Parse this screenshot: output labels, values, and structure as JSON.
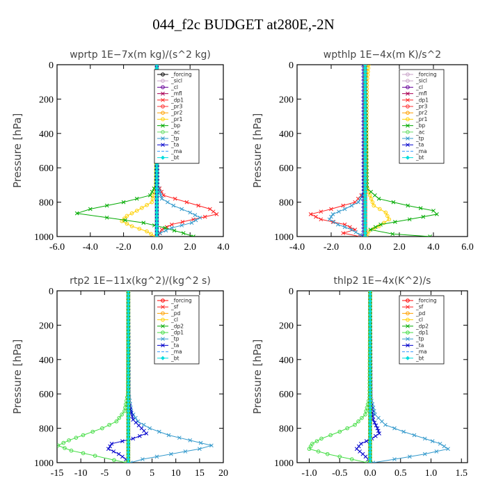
{
  "figure_title": "044_f2c  BUDGET at280E,-2N",
  "chart_data": [
    {
      "type": "line",
      "title": "wprtp   1E−7x(m kg)/(s^2 kg)",
      "xlabel": "",
      "ylabel": "Pressure [hPa]",
      "xlim": [
        -6,
        4
      ],
      "ylim": [
        1000,
        0
      ],
      "xticks": [
        -6,
        -4,
        -2,
        0,
        2,
        4
      ],
      "xtick_labels": [
        "-6.0",
        "-4.0",
        "-2.0",
        "0.0",
        "2.0",
        "4.0"
      ],
      "yticks": [
        0,
        200,
        400,
        600,
        800,
        1000
      ],
      "ytick_labels": [
        "0",
        "200",
        "400",
        "600",
        "800",
        "1000"
      ],
      "legend": "top-center",
      "series": [
        {
          "name": "_forcing",
          "color": "#000000",
          "marker": "o",
          "p": [
            0,
            1000
          ],
          "x": [
            0,
            0
          ]
        },
        {
          "name": "_sicl",
          "color": "#c8a2c8",
          "marker": "o",
          "p": [
            0,
            1000
          ],
          "x": [
            0,
            0
          ]
        },
        {
          "name": "_cl",
          "color": "#660099",
          "marker": "o",
          "p": [
            0,
            1000
          ],
          "x": [
            0,
            0
          ]
        },
        {
          "name": "_mfl",
          "color": "#aa0055",
          "marker": "x",
          "p": [
            0,
            1000
          ],
          "x": [
            0,
            0
          ]
        },
        {
          "name": "_dp1",
          "color": "#ff2020",
          "marker": "x",
          "p": [
            0,
            700,
            760,
            800,
            840,
            870,
            900,
            930,
            960,
            1000
          ],
          "x": [
            0,
            0.05,
            0.4,
            1.8,
            3.2,
            3.6,
            2.2,
            0.9,
            0.3,
            0.05
          ]
        },
        {
          "name": "_pr3",
          "color": "#ff3030",
          "marker": "o",
          "p": [
            0,
            1000
          ],
          "x": [
            0,
            0
          ]
        },
        {
          "name": "_pr2",
          "color": "#ffa000",
          "marker": "o",
          "p": [
            0,
            1000
          ],
          "x": [
            0,
            0
          ]
        },
        {
          "name": "_pr1",
          "color": "#ffd000",
          "marker": "o",
          "p": [
            0,
            700,
            800,
            850,
            880,
            910,
            940,
            970,
            1000
          ],
          "x": [
            0,
            -0.05,
            -0.3,
            -1.2,
            -1.8,
            -2.1,
            -1.5,
            -0.6,
            -0.1
          ]
        },
        {
          "name": "_bp",
          "color": "#00aa00",
          "marker": "x",
          "p": [
            0,
            700,
            760,
            800,
            840,
            865,
            890,
            920,
            950,
            980,
            1000
          ],
          "x": [
            0,
            -0.05,
            -0.4,
            -2.0,
            -4.0,
            -4.8,
            -3.0,
            -0.8,
            0.5,
            1.6,
            2.2
          ]
        },
        {
          "name": "_ac",
          "color": "#66dd66",
          "marker": "o",
          "p": [
            0,
            1000
          ],
          "x": [
            0,
            0
          ]
        },
        {
          "name": "_tp",
          "color": "#3399cc",
          "marker": "x",
          "p": [
            0,
            700,
            780,
            820,
            860,
            890,
            920,
            950,
            980,
            1000
          ],
          "x": [
            0,
            0.05,
            0.3,
            1.0,
            2.0,
            2.6,
            2.1,
            0.9,
            0.2,
            0
          ]
        },
        {
          "name": "_ta",
          "color": "#0000cc",
          "marker": "x",
          "p": [
            0,
            1000
          ],
          "x": [
            0,
            0
          ]
        },
        {
          "name": "_ma",
          "color": "#3399ff",
          "marker": "-",
          "p": [
            0,
            1000
          ],
          "x": [
            0,
            0
          ]
        },
        {
          "name": "_bt",
          "color": "#00dddd",
          "marker": "d",
          "p": [
            0,
            1000
          ],
          "x": [
            0,
            0
          ]
        }
      ]
    },
    {
      "type": "line",
      "title": "wpthlp   1E−4x(m K)/s^2",
      "xlabel": "",
      "ylabel": "Pressure [hPa]",
      "xlim": [
        -4,
        6
      ],
      "ylim": [
        1000,
        0
      ],
      "xticks": [
        -4,
        -2,
        0,
        2,
        4,
        6
      ],
      "xtick_labels": [
        "-4.0",
        "-2.0",
        "0.0",
        "2.0",
        "4.0",
        "6.0"
      ],
      "yticks": [
        0,
        200,
        400,
        600,
        800,
        1000
      ],
      "ytick_labels": [
        "0",
        "200",
        "400",
        "600",
        "800",
        "1000"
      ],
      "legend": "top-right",
      "series": [
        {
          "name": "_forcing",
          "color": "#c8a2c8",
          "marker": "o",
          "p": [
            0,
            1000
          ],
          "x": [
            0,
            0
          ]
        },
        {
          "name": "_sicl",
          "color": "#c8a2c8",
          "marker": "o",
          "p": [
            0,
            1000
          ],
          "x": [
            0,
            0
          ]
        },
        {
          "name": "_cl",
          "color": "#660099",
          "marker": "o",
          "p": [
            0,
            1000
          ],
          "x": [
            0,
            0
          ]
        },
        {
          "name": "_mfl",
          "color": "#aa0055",
          "marker": "x",
          "p": [
            0,
            1000
          ],
          "x": [
            0,
            0
          ]
        },
        {
          "name": "_dp1",
          "color": "#ff2020",
          "marker": "x",
          "p": [
            0,
            740,
            800,
            840,
            870,
            900,
            930,
            960,
            980,
            1000
          ],
          "x": [
            0,
            -0.05,
            -0.6,
            -2.0,
            -3.2,
            -2.6,
            -1.2,
            -0.6,
            -1.3,
            -0.3
          ]
        },
        {
          "name": "_pr3",
          "color": "#ff3030",
          "marker": "o",
          "p": [
            0,
            1000
          ],
          "x": [
            0,
            0
          ]
        },
        {
          "name": "_pr2",
          "color": "#ffa000",
          "marker": "o",
          "p": [
            0,
            1000
          ],
          "x": [
            0,
            0
          ]
        },
        {
          "name": "_pr1",
          "color": "#ffd000",
          "marker": "o",
          "p": [
            0,
            100,
            700,
            820,
            860,
            900,
            940,
            970,
            1000
          ],
          "x": [
            0.2,
            0.1,
            0.05,
            0.5,
            1.2,
            1.4,
            0.8,
            0.2,
            0.05
          ]
        },
        {
          "name": "_bp",
          "color": "#00aa00",
          "marker": "x",
          "p": [
            0,
            720,
            780,
            820,
            850,
            870,
            900,
            930,
            960,
            985,
            1000
          ],
          "x": [
            0,
            0.1,
            0.8,
            2.5,
            4.0,
            4.2,
            2.6,
            0.9,
            0.3,
            1.6,
            3.8
          ]
        },
        {
          "name": "_ac",
          "color": "#66dd66",
          "marker": "o",
          "p": [
            0,
            1000
          ],
          "x": [
            0,
            0
          ]
        },
        {
          "name": "_tp",
          "color": "#3399cc",
          "marker": "x",
          "p": [
            0,
            740,
            800,
            840,
            870,
            900,
            930,
            960,
            990,
            1000
          ],
          "x": [
            0,
            -0.05,
            -0.4,
            -1.2,
            -1.9,
            -2.1,
            -1.6,
            -0.8,
            -0.3,
            0
          ]
        },
        {
          "name": "_ta",
          "color": "#0000cc",
          "marker": "x",
          "p": [
            0,
            1000
          ],
          "x": [
            -0.1,
            -0.1
          ]
        },
        {
          "name": "_ma",
          "color": "#3399ff",
          "marker": "-",
          "p": [
            0,
            1000
          ],
          "x": [
            0,
            0
          ]
        },
        {
          "name": "_bt",
          "color": "#00dddd",
          "marker": "d",
          "p": [
            0,
            1000
          ],
          "x": [
            0,
            0
          ]
        }
      ]
    },
    {
      "type": "line",
      "title": "rtp2   1E−11x(kg^2)/(kg^2 s)",
      "xlabel": "",
      "ylabel": "Pressure [hPa]",
      "xlim": [
        -15,
        20
      ],
      "ylim": [
        1000,
        0
      ],
      "xticks": [
        -15,
        -10,
        -5,
        0,
        5,
        10,
        15,
        20
      ],
      "xtick_labels": [
        "-15",
        "-10",
        "-5",
        "0",
        "5",
        "10",
        "15",
        "20"
      ],
      "yticks": [
        0,
        200,
        400,
        600,
        800,
        1000
      ],
      "ytick_labels": [
        "0",
        "200",
        "400",
        "600",
        "800",
        "1000"
      ],
      "legend": "top-right",
      "series": [
        {
          "name": "_forcing",
          "color": "#ff0000",
          "marker": "o",
          "p": [
            0,
            1000
          ],
          "x": [
            0,
            0
          ]
        },
        {
          "name": "_sf",
          "color": "#ff2020",
          "marker": "x",
          "p": [
            0,
            1000
          ],
          "x": [
            0,
            0
          ]
        },
        {
          "name": "_pd",
          "color": "#ffa000",
          "marker": "o",
          "p": [
            0,
            1000
          ],
          "x": [
            0,
            0
          ]
        },
        {
          "name": "_cl",
          "color": "#ffd000",
          "marker": "o",
          "p": [
            0,
            1000
          ],
          "x": [
            0,
            0
          ]
        },
        {
          "name": "_dp2",
          "color": "#00aa00",
          "marker": "x",
          "p": [
            0,
            1000
          ],
          "x": [
            0,
            0
          ]
        },
        {
          "name": "_dp1",
          "color": "#44dd44",
          "marker": "o",
          "p": [
            0,
            600,
            700,
            760,
            800,
            840,
            870,
            900,
            930,
            960,
            985,
            1000
          ],
          "x": [
            0,
            -0.1,
            -0.8,
            -2.5,
            -5.5,
            -9.5,
            -12.5,
            -14.8,
            -12.0,
            -7.0,
            -3.0,
            -0.5
          ]
        },
        {
          "name": "_tp",
          "color": "#3399cc",
          "marker": "x",
          "p": [
            0,
            600,
            700,
            760,
            800,
            840,
            870,
            900,
            920,
            950,
            980,
            1000
          ],
          "x": [
            0,
            0.1,
            0.6,
            2.0,
            4.5,
            8.5,
            13.0,
            17.5,
            15.0,
            9.0,
            3.0,
            0.5
          ]
        },
        {
          "name": "_ta",
          "color": "#0000cc",
          "marker": "x",
          "p": [
            0,
            650,
            750,
            800,
            830,
            860,
            890,
            920,
            950,
            980,
            1000
          ],
          "x": [
            0,
            0.1,
            1.0,
            2.8,
            3.8,
            1.0,
            -3.5,
            -4.2,
            -2.0,
            -0.5,
            0
          ]
        },
        {
          "name": "_ma",
          "color": "#3399ff",
          "marker": "-",
          "p": [
            0,
            1000
          ],
          "x": [
            0,
            0
          ]
        },
        {
          "name": "_bt",
          "color": "#00dddd",
          "marker": "d",
          "p": [
            0,
            1000
          ],
          "x": [
            0,
            0
          ]
        }
      ]
    },
    {
      "type": "line",
      "title": "thlp2   1E−4x(K^2)/s",
      "xlabel": "",
      "ylabel": "Pressure [hPa]",
      "xlim": [
        -1.2,
        1.6
      ],
      "ylim": [
        1000,
        0
      ],
      "xticks": [
        -1.0,
        -0.5,
        0.0,
        0.5,
        1.0,
        1.5
      ],
      "xtick_labels": [
        "-1.0",
        "-0.5",
        "0.0",
        "0.5",
        "1.0",
        "1.5"
      ],
      "yticks": [
        0,
        200,
        400,
        600,
        800,
        1000
      ],
      "ytick_labels": [
        "0",
        "200",
        "400",
        "600",
        "800",
        "1000"
      ],
      "legend": "top-right",
      "series": [
        {
          "name": "_forcing",
          "color": "#ff0000",
          "marker": "o",
          "p": [
            0,
            1000
          ],
          "x": [
            0,
            0
          ]
        },
        {
          "name": "_sf",
          "color": "#ff2020",
          "marker": "x",
          "p": [
            0,
            1000
          ],
          "x": [
            0,
            0
          ]
        },
        {
          "name": "_pd",
          "color": "#ffa000",
          "marker": "o",
          "p": [
            0,
            1000
          ],
          "x": [
            0,
            0
          ]
        },
        {
          "name": "_cl",
          "color": "#ffd000",
          "marker": "o",
          "p": [
            0,
            1000
          ],
          "x": [
            0,
            0
          ]
        },
        {
          "name": "_dp2",
          "color": "#00aa00",
          "marker": "x",
          "p": [
            0,
            1000
          ],
          "x": [
            0,
            0
          ]
        },
        {
          "name": "_dp1",
          "color": "#44dd44",
          "marker": "o",
          "p": [
            0,
            620,
            720,
            780,
            820,
            860,
            890,
            920,
            950,
            980,
            1000
          ],
          "x": [
            0,
            -0.01,
            -0.08,
            -0.25,
            -0.5,
            -0.8,
            -0.95,
            -1.0,
            -0.7,
            -0.3,
            -0.05
          ]
        },
        {
          "name": "_tp",
          "color": "#3399cc",
          "marker": "x",
          "p": [
            0,
            620,
            720,
            780,
            820,
            860,
            890,
            920,
            950,
            980,
            1000
          ],
          "x": [
            0,
            0.01,
            0.08,
            0.25,
            0.55,
            0.9,
            1.15,
            1.28,
            0.9,
            0.4,
            0.05
          ]
        },
        {
          "name": "_ta",
          "color": "#0000cc",
          "marker": "x",
          "p": [
            0,
            650,
            750,
            800,
            830,
            860,
            890,
            920,
            950,
            980,
            1000
          ],
          "x": [
            0,
            0.01,
            0.05,
            0.12,
            0.15,
            0.03,
            -0.15,
            -0.22,
            -0.12,
            -0.03,
            0
          ]
        },
        {
          "name": "_ma",
          "color": "#3399ff",
          "marker": "-",
          "p": [
            0,
            1000
          ],
          "x": [
            0,
            0
          ]
        },
        {
          "name": "_bt",
          "color": "#00dddd",
          "marker": "d",
          "p": [
            0,
            1000
          ],
          "x": [
            0,
            0
          ]
        }
      ]
    }
  ]
}
